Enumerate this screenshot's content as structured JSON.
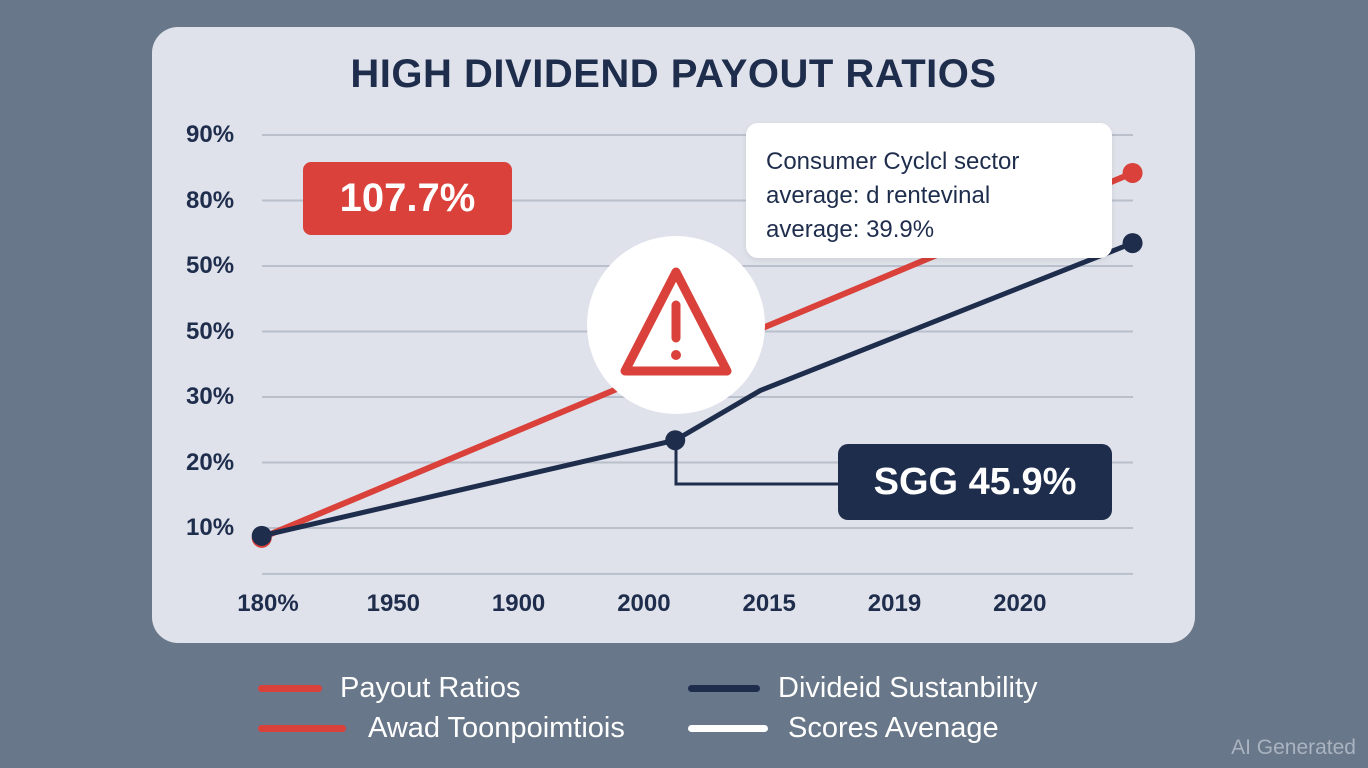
{
  "chart_data": {
    "type": "line",
    "title": "HIGH DIVIDEND PAYOUT RATIOS",
    "y_tick_labels": [
      "10%",
      "20%",
      "30%",
      "50%",
      "50%",
      "80%",
      "90%"
    ],
    "x_tick_labels": [
      "180%",
      "1950",
      "1900",
      "2000",
      "2015",
      "2019",
      "2020"
    ],
    "y_scale": "tick-index (0 = first y tick label, 6 = last)",
    "x_scale": "tick-index (0 = first x tick label, 6 = last)",
    "series": [
      {
        "name": "Payout Ratios",
        "color": "#d9413a",
        "points": [
          [
            -0.05,
            -0.15
          ],
          [
            6.9,
            5.42
          ]
        ]
      },
      {
        "name": "Divideid Sustanbility",
        "color": "#1f2d4d",
        "points": [
          [
            -0.05,
            -0.12
          ],
          [
            3.25,
            1.34
          ],
          [
            3.93,
            2.1
          ],
          [
            6.9,
            4.35
          ]
        ]
      }
    ],
    "annotations": {
      "red_badge": "107.7%",
      "navy_badge": "SGG 45.9%",
      "callout_lines": [
        "Consumer Cyclcl sector",
        "average: d rentevinal",
        "average: 39.9%"
      ],
      "warning_icon": "warning-triangle"
    },
    "legend": [
      {
        "label": "Payout Ratios",
        "color": "#d9413a"
      },
      {
        "label": "Divideid Sustanbility",
        "color": "#1f2d4d"
      },
      {
        "label": "Awad Toonpoimtiois",
        "color": "#d9413a"
      },
      {
        "label": "Scores Avenage",
        "color": "#ffffff"
      }
    ],
    "legend_position": "bottom",
    "grid": true
  },
  "watermark": "AI Generated"
}
